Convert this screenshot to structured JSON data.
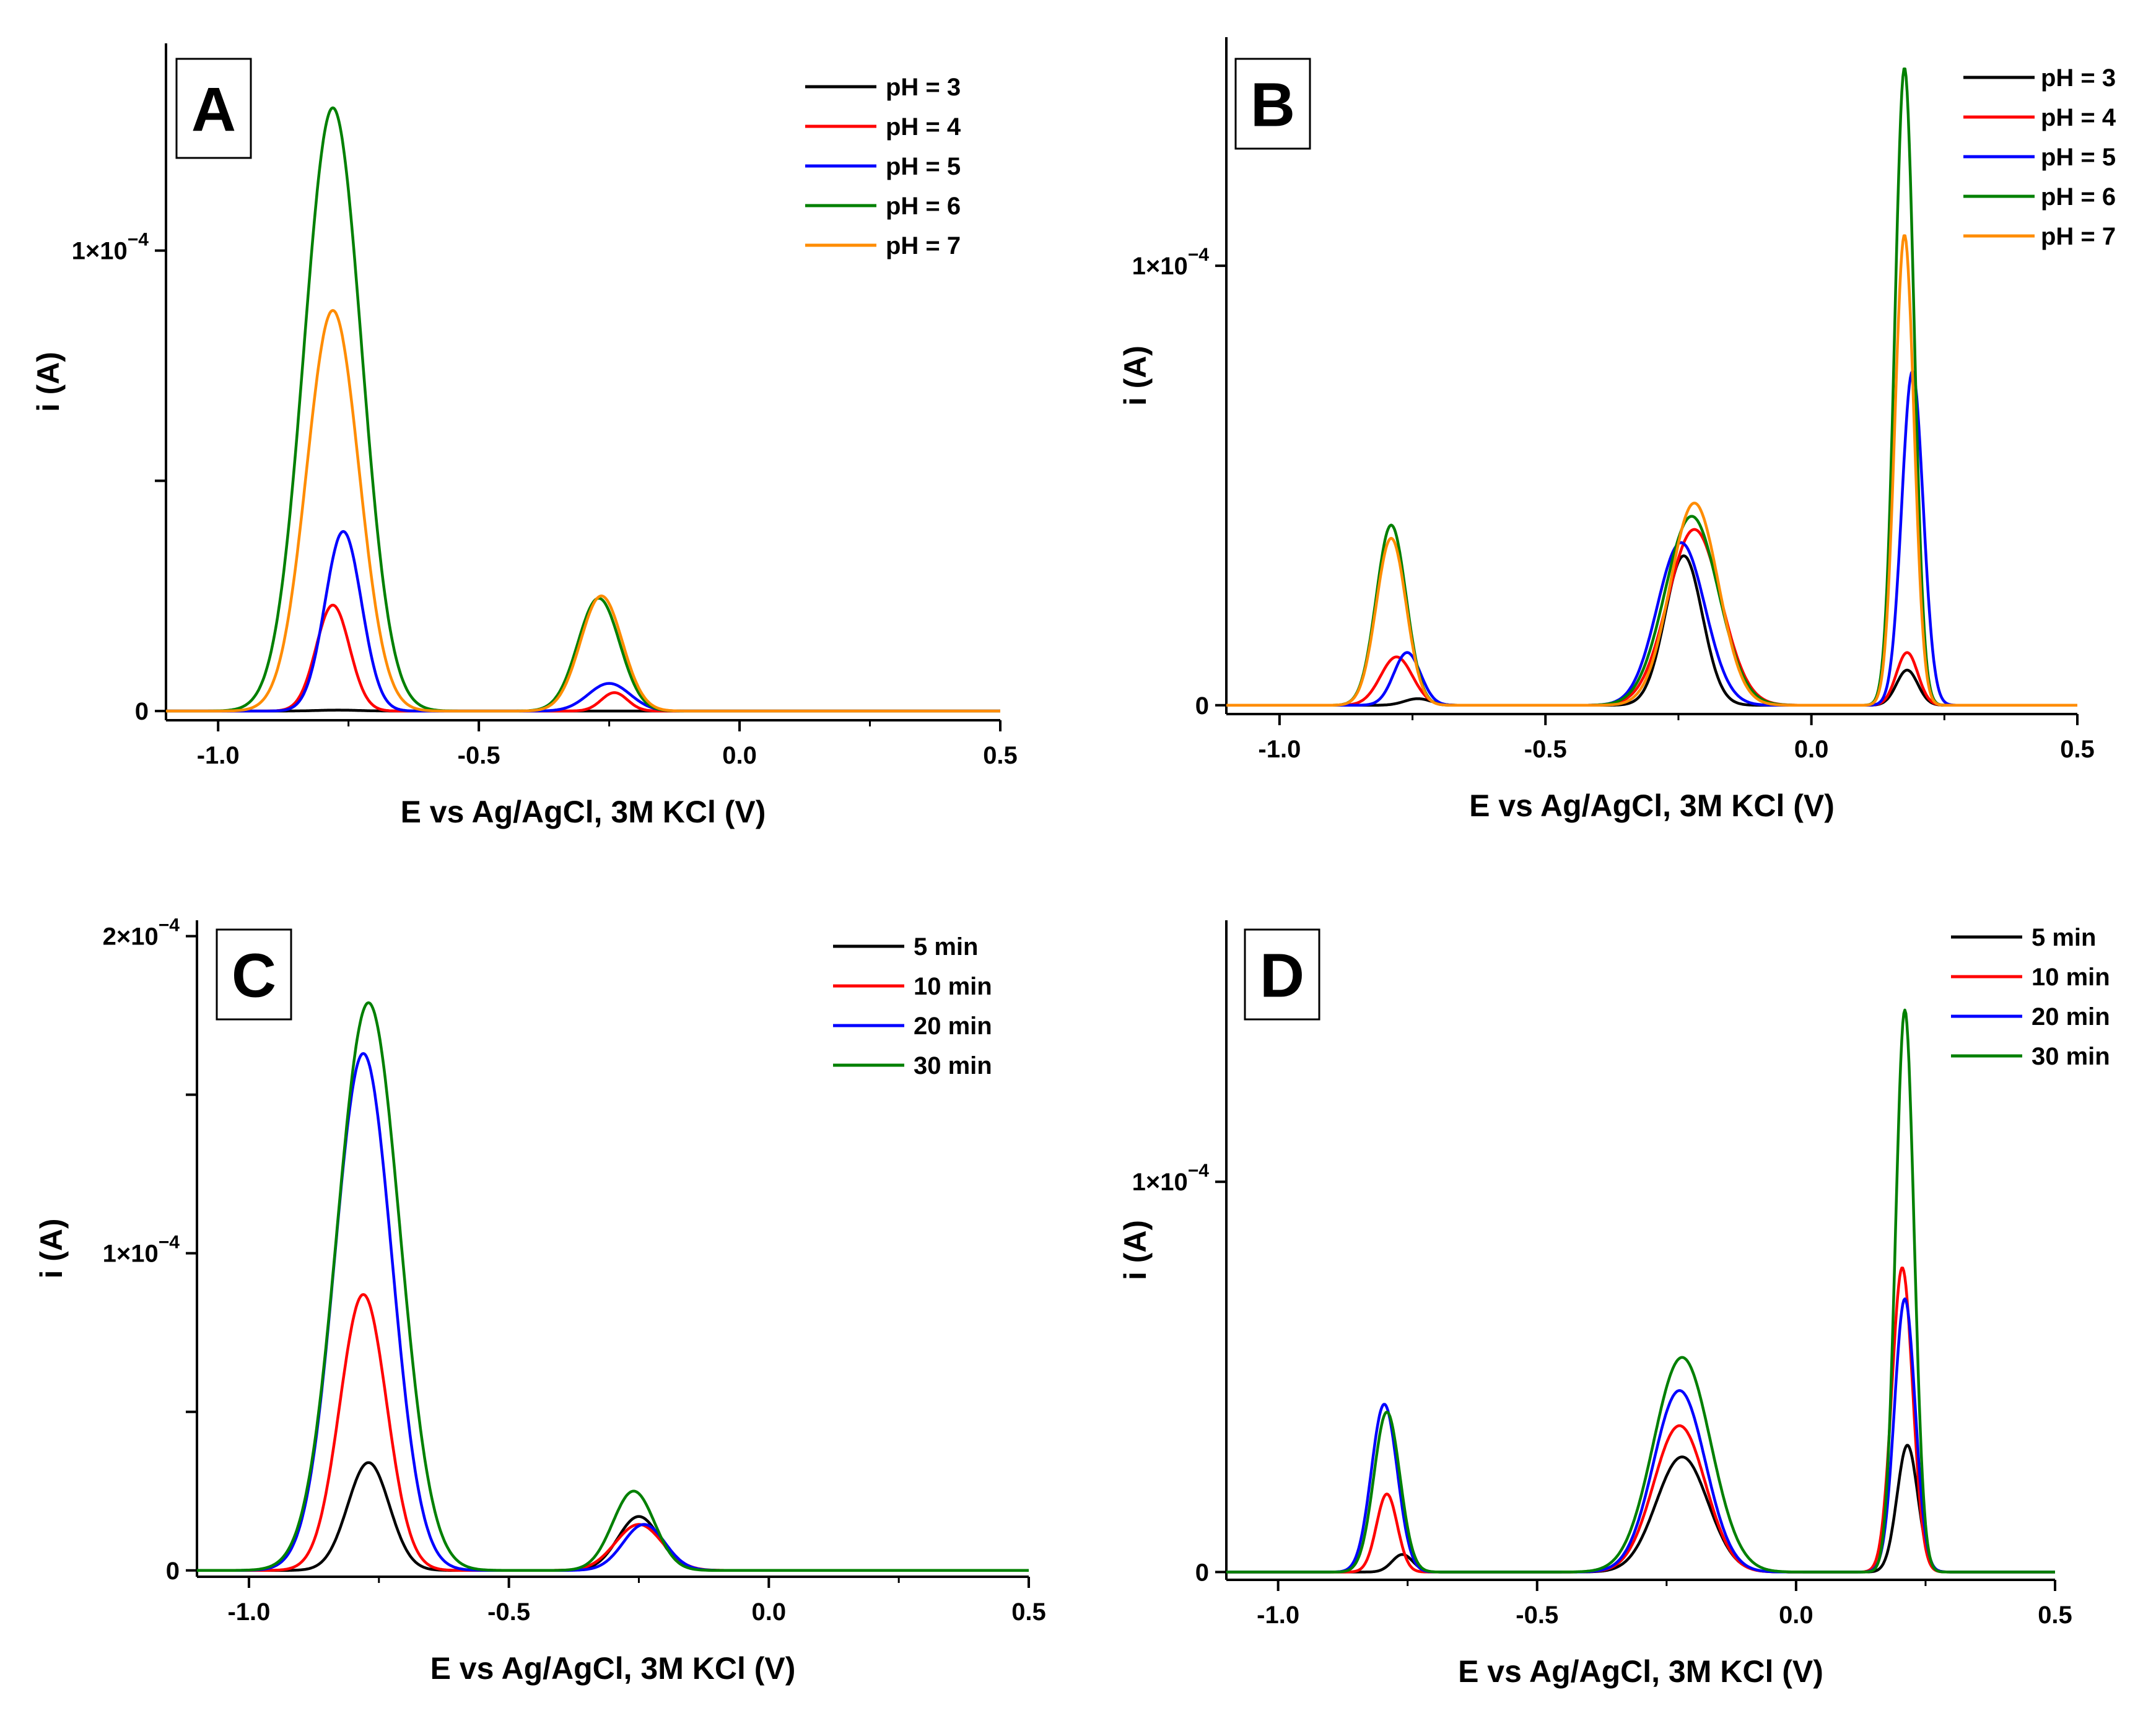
{
  "figure": {
    "colors": {
      "black": "#000000",
      "red": "#ff0000",
      "blue": "#0000ff",
      "green": "#008000",
      "orange": "#ff8c00"
    }
  },
  "chart_data": [
    {
      "id": "A",
      "type": "line",
      "panel_label": "A",
      "xlabel": "E vs Ag/AgCl, 3M KCl (V)",
      "ylabel": "i (A)",
      "xlim": [
        -1.1,
        0.5
      ],
      "ylim": [
        -0.02,
        1.45
      ],
      "y_unit_scale": "1e-4",
      "xticks": [
        {
          "value": -1.0,
          "label": "-1.0"
        },
        {
          "value": -0.5,
          "label": "-0.5"
        },
        {
          "value": 0.0,
          "label": "0.0"
        },
        {
          "value": 0.5,
          "label": "0.5"
        }
      ],
      "yticks": [
        {
          "value": 0,
          "label_base": "0",
          "label_exp": ""
        },
        {
          "value": 0.5,
          "label_base": "",
          "label_exp": ""
        },
        {
          "value": 1.0,
          "label_base": "1×10",
          "label_exp": "−4"
        }
      ],
      "legend": {
        "placement": "top-right"
      },
      "series": [
        {
          "name": "pH = 3",
          "color": "#000000",
          "peaks": [
            [
              -0.77,
              0.002,
              0.04
            ]
          ]
        },
        {
          "name": "pH = 4",
          "color": "#ff0000",
          "peaks": [
            [
              -0.78,
              0.23,
              0.032
            ],
            [
              -0.24,
              0.04,
              0.025
            ]
          ]
        },
        {
          "name": "pH = 5",
          "color": "#0000ff",
          "peaks": [
            [
              -0.76,
              0.39,
              0.035
            ],
            [
              -0.25,
              0.06,
              0.04
            ]
          ]
        },
        {
          "name": "pH = 6",
          "color": "#008000",
          "peaks": [
            [
              -0.78,
              1.31,
              0.055
            ],
            [
              -0.27,
              0.245,
              0.04
            ]
          ]
        },
        {
          "name": "pH = 7",
          "color": "#ff8c00",
          "peaks": [
            [
              -0.78,
              0.87,
              0.05
            ],
            [
              -0.265,
              0.25,
              0.04
            ]
          ]
        }
      ]
    },
    {
      "id": "B",
      "type": "line",
      "panel_label": "B",
      "xlabel": "E vs Ag/AgCl, 3M KCl (V)",
      "ylabel": "i (A)",
      "xlim": [
        -1.1,
        0.5
      ],
      "ylim": [
        -0.02,
        1.52
      ],
      "y_unit_scale": "1e-4",
      "xticks": [
        {
          "value": -1.0,
          "label": "-1.0"
        },
        {
          "value": -0.5,
          "label": "-0.5"
        },
        {
          "value": 0.0,
          "label": "0.0"
        },
        {
          "value": 0.5,
          "label": "0.5"
        }
      ],
      "yticks": [
        {
          "value": 0,
          "label_base": "0",
          "label_exp": ""
        },
        {
          "value": 1.0,
          "label_base": "1×10",
          "label_exp": "−4"
        }
      ],
      "legend": {
        "placement": "top-right"
      },
      "series": [
        {
          "name": "pH = 3",
          "color": "#000000",
          "peaks": [
            [
              -0.74,
              0.015,
              0.025
            ],
            [
              -0.24,
              0.34,
              0.035
            ],
            [
              0.18,
              0.08,
              0.02
            ]
          ]
        },
        {
          "name": "pH = 4",
          "color": "#ff0000",
          "peaks": [
            [
              -0.78,
              0.11,
              0.03
            ],
            [
              -0.22,
              0.4,
              0.05
            ],
            [
              0.18,
              0.12,
              0.02
            ]
          ]
        },
        {
          "name": "pH = 5",
          "color": "#0000ff",
          "peaks": [
            [
              -0.76,
              0.12,
              0.025
            ],
            [
              -0.245,
              0.37,
              0.045
            ],
            [
              0.19,
              0.76,
              0.02
            ]
          ]
        },
        {
          "name": "pH = 6",
          "color": "#008000",
          "peaks": [
            [
              -0.79,
              0.41,
              0.028
            ],
            [
              -0.225,
              0.43,
              0.05
            ],
            [
              0.175,
              1.45,
              0.018
            ]
          ]
        },
        {
          "name": "pH = 7",
          "color": "#ff8c00",
          "peaks": [
            [
              -0.79,
              0.38,
              0.028
            ],
            [
              -0.22,
              0.46,
              0.045
            ],
            [
              0.175,
              1.07,
              0.018
            ]
          ]
        }
      ]
    },
    {
      "id": "C",
      "type": "line",
      "panel_label": "C",
      "xlabel": "E vs Ag/AgCl, 3M KCl (V)",
      "ylabel": "i (A)",
      "xlim": [
        -1.1,
        0.5
      ],
      "ylim": [
        -0.02,
        2.05
      ],
      "y_unit_scale": "1e-4",
      "xticks": [
        {
          "value": -1.0,
          "label": "-1.0"
        },
        {
          "value": -0.5,
          "label": "-0.5"
        },
        {
          "value": 0.0,
          "label": "0.0"
        },
        {
          "value": 0.5,
          "label": "0.5"
        }
      ],
      "yticks": [
        {
          "value": 0,
          "label_base": "0",
          "label_exp": ""
        },
        {
          "value": 0.5,
          "label_base": "",
          "label_exp": ""
        },
        {
          "value": 1.0,
          "label_base": "1×10",
          "label_exp": "−4"
        },
        {
          "value": 1.5,
          "label_base": "",
          "label_exp": ""
        },
        {
          "value": 2.0,
          "label_base": "2×10",
          "label_exp": "−4"
        }
      ],
      "legend": {
        "placement": "top-right"
      },
      "series": [
        {
          "name": "5 min",
          "color": "#000000",
          "peaks": [
            [
              -0.77,
              0.34,
              0.04
            ],
            [
              -0.25,
              0.17,
              0.04
            ]
          ]
        },
        {
          "name": "10 min",
          "color": "#ff0000",
          "peaks": [
            [
              -0.78,
              0.87,
              0.045
            ],
            [
              -0.25,
              0.145,
              0.045
            ]
          ]
        },
        {
          "name": "20 min",
          "color": "#0000ff",
          "peaks": [
            [
              -0.78,
              1.63,
              0.055
            ],
            [
              -0.24,
              0.145,
              0.04
            ]
          ]
        },
        {
          "name": "30 min",
          "color": "#008000",
          "peaks": [
            [
              -0.77,
              1.79,
              0.06
            ],
            [
              -0.26,
              0.25,
              0.04
            ]
          ]
        }
      ]
    },
    {
      "id": "D",
      "type": "line",
      "panel_label": "D",
      "xlabel": "E vs Ag/AgCl, 3M KCl (V)",
      "ylabel": "i (A)",
      "xlim": [
        -1.1,
        0.5
      ],
      "ylim": [
        -0.02,
        1.67
      ],
      "y_unit_scale": "1e-4",
      "xticks": [
        {
          "value": -1.0,
          "label": "-1.0"
        },
        {
          "value": -0.5,
          "label": "-0.5"
        },
        {
          "value": 0.0,
          "label": "0.0"
        },
        {
          "value": 0.5,
          "label": "0.5"
        }
      ],
      "yticks": [
        {
          "value": 0,
          "label_base": "0",
          "label_exp": ""
        },
        {
          "value": 1.0,
          "label_base": "1×10",
          "label_exp": "−4"
        }
      ],
      "legend": {
        "placement": "top-right"
      },
      "series": [
        {
          "name": "5 min",
          "color": "#000000",
          "peaks": [
            [
              -0.76,
              0.045,
              0.02
            ],
            [
              -0.22,
              0.295,
              0.05
            ],
            [
              0.215,
              0.325,
              0.02
            ]
          ]
        },
        {
          "name": "10 min",
          "color": "#ff0000",
          "peaks": [
            [
              -0.79,
              0.2,
              0.02
            ],
            [
              -0.225,
              0.375,
              0.05
            ],
            [
              0.205,
              0.78,
              0.02
            ]
          ]
        },
        {
          "name": "20 min",
          "color": "#0000ff",
          "peaks": [
            [
              -0.795,
              0.43,
              0.025
            ],
            [
              -0.225,
              0.465,
              0.05
            ],
            [
              0.21,
              0.7,
              0.02
            ]
          ]
        },
        {
          "name": "30 min",
          "color": "#008000",
          "peaks": [
            [
              -0.79,
              0.41,
              0.025
            ],
            [
              -0.22,
              0.55,
              0.055
            ],
            [
              0.21,
              1.44,
              0.018
            ]
          ]
        }
      ]
    }
  ]
}
